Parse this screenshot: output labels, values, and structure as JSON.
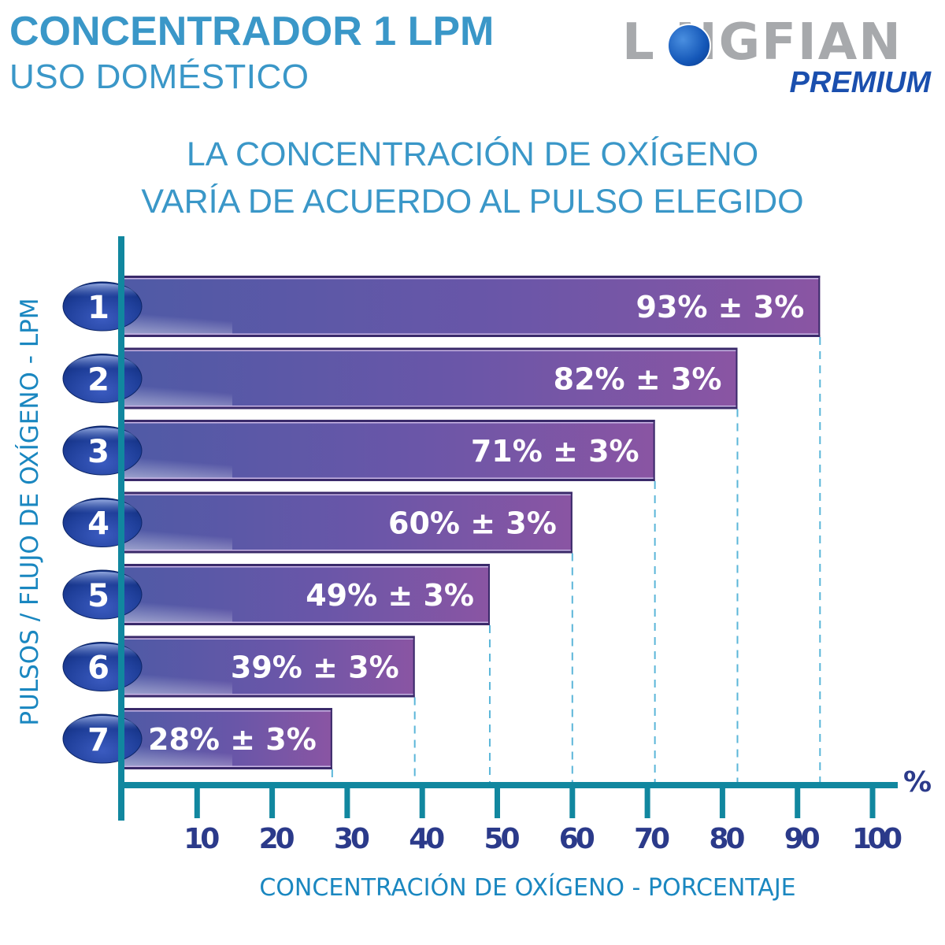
{
  "header": {
    "title": "CONCENTRADOR 1 LPM",
    "subtitle": "USO DOMÉSTICO"
  },
  "logo": {
    "brand": "L  NGFIAN",
    "tagline": "PREMIUM",
    "icon": "globe-icon"
  },
  "headline": {
    "line1": "LA CONCENTRACIÓN DE OXÍGENO",
    "line2": "VARÍA DE ACUERDO AL PULSO ELEGIDO"
  },
  "colors": {
    "accent_blue": "#3a97c8",
    "axis_teal": "#11879f",
    "tick_label_navy": "#2b3a8a",
    "bar_left": "#4f5aa6",
    "bar_right": "#8a55a3",
    "badge_blue": "#1f3f9a",
    "gridline": "#5bb6d9"
  },
  "chart_data": {
    "type": "bar",
    "orientation": "horizontal",
    "title": "LA CONCENTRACIÓN DE OXÍGENO VARÍA DE ACUERDO AL PULSO ELEGIDO",
    "xlabel": "CONCENTRACIÓN DE OXÍGENO - PORCENTAJE",
    "ylabel": "PULSOS / FLUJO DE OXÍGENO - LPM",
    "x_unit": "%",
    "xlim": [
      0,
      100
    ],
    "xticks": [
      10,
      20,
      30,
      40,
      50,
      60,
      70,
      80,
      90,
      100
    ],
    "categories": [
      "1",
      "2",
      "3",
      "4",
      "5",
      "6",
      "7"
    ],
    "values": [
      93,
      82,
      71,
      60,
      49,
      39,
      28
    ],
    "tolerance": 3,
    "data_labels": [
      "93% ± 3%",
      "82% ± 3%",
      "71% ± 3%",
      "60% ± 3%",
      "49% ± 3%",
      "39% ± 3%",
      "28% ± 3%"
    ],
    "grid": "dashed vertical guides at bar ends",
    "legend": "none"
  }
}
